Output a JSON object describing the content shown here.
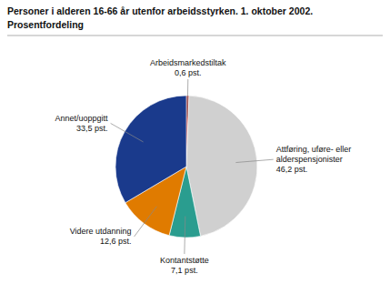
{
  "chart_data": {
    "type": "pie",
    "title": "Personer i alderen 16-66 år utenfor arbeidsstyrken. 1. oktober 2002.",
    "subtitle": "Prosentfordeling",
    "categories": [
      "Arbeidsmarkedstiltak",
      "Attføring, uføre- eller\nalderspensjonister",
      "Kontantstøtte",
      "Videre utdanning",
      "Annet/uoppgitt"
    ],
    "values": [
      0.6,
      46.2,
      7.1,
      12.6,
      33.5
    ],
    "value_labels": [
      "0,6 pst.",
      "46,2 pst.",
      "7,1 pst.",
      "12,6 pst.",
      "33,5 pst."
    ],
    "colors": [
      "#aa1111",
      "#d0d0d0",
      "#2a9d8f",
      "#e07b00",
      "#1a3a8c"
    ],
    "data_labels": true
  }
}
